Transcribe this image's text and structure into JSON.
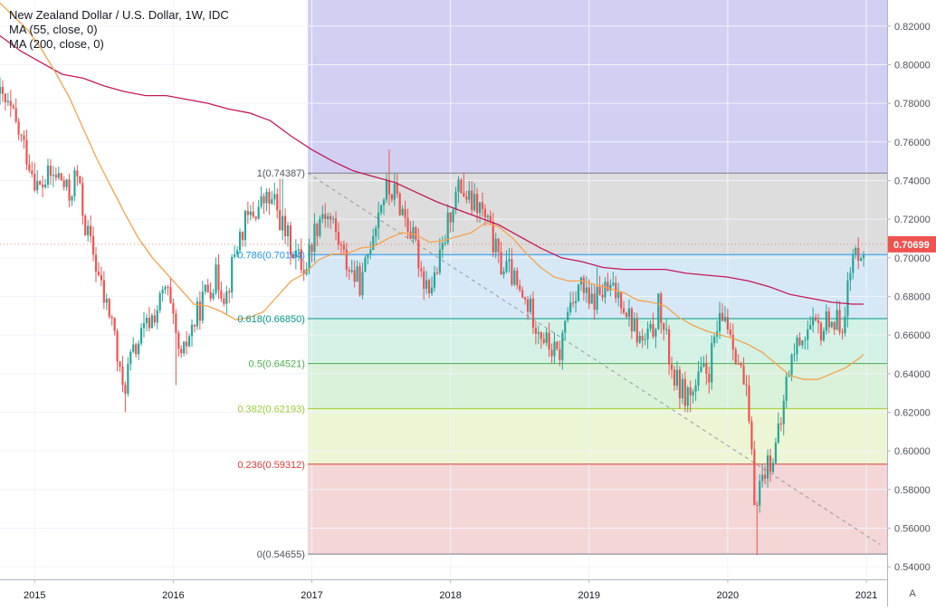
{
  "chart_data": {
    "type": "candlestick",
    "title": "New Zealand Dollar / U.S. Dollar, 1W, IDC",
    "indicators": [
      "MA (55, close, 0)",
      "MA (200, close, 0)"
    ],
    "x_tick_labels": [
      "2015",
      "2016",
      "2017",
      "2018",
      "2019",
      "2020",
      "2021"
    ],
    "y_tick_labels": [
      "0.82000",
      "0.80000",
      "0.78000",
      "0.76000",
      "0.74000",
      "0.72000",
      "0.70000",
      "0.68000",
      "0.66000",
      "0.64000",
      "0.62000",
      "0.60000",
      "0.58000",
      "0.56000",
      "0.54000"
    ],
    "ylim": [
      0.5335,
      0.8335
    ],
    "xlim": [
      2014.75,
      2021.15
    ],
    "last_price_label": "0.70699",
    "last_price": 0.70699,
    "colors": {
      "up": "#26a69a",
      "down": "#ef5350",
      "ma55": "#f7a24c",
      "ma200": "#c2185b",
      "trend": "#9598a1",
      "grid": "#f0f3fa"
    },
    "fibonacci": {
      "start_year": 2016.97,
      "levels": [
        {
          "label": "1(0.74387)",
          "value": 0.74387,
          "line": "#787b86",
          "fill": "#d7d7d7"
        },
        {
          "label": "0.786(0.70164)",
          "value": 0.70164,
          "line": "#2196f3",
          "fill": "#cfe4f3"
        },
        {
          "label": "0.618(0.66850)",
          "value": 0.6685,
          "line": "#009688",
          "fill": "#cdeee2"
        },
        {
          "label": "0.5(0.64521)",
          "value": 0.64521,
          "line": "#4caf50",
          "fill": "#d4efd4"
        },
        {
          "label": "0.382(0.62193)",
          "value": 0.62193,
          "line": "#9acd32",
          "fill": "#e9f4cd"
        },
        {
          "label": "0.236(0.59312)",
          "value": 0.59312,
          "line": "#e53935",
          "fill": "#f2cfcf"
        },
        {
          "label": "0(0.54655)",
          "value": 0.54655,
          "line": "#787b86",
          "fill": null
        }
      ],
      "extension_fill": "#d1d0f2"
    },
    "trendline": {
      "start": {
        "x": 2016.97,
        "y": 0.74387
      },
      "end": {
        "x": 2021.1,
        "y": 0.5515
      }
    },
    "price_path": [
      [
        2014.75,
        0.785
      ],
      [
        2014.85,
        0.775
      ],
      [
        2014.97,
        0.752
      ],
      [
        2015.05,
        0.735
      ],
      [
        2015.12,
        0.742
      ],
      [
        2015.2,
        0.742
      ],
      [
        2015.27,
        0.731
      ],
      [
        2015.32,
        0.745
      ],
      [
        2015.38,
        0.718
      ],
      [
        2015.45,
        0.7
      ],
      [
        2015.52,
        0.678
      ],
      [
        2015.58,
        0.668
      ],
      [
        2015.63,
        0.64
      ],
      [
        2015.66,
        0.63
      ],
      [
        2015.7,
        0.645
      ],
      [
        2015.76,
        0.655
      ],
      [
        2015.83,
        0.665
      ],
      [
        2015.9,
        0.673
      ],
      [
        2015.97,
        0.685
      ],
      [
        2016.03,
        0.66
      ],
      [
        2016.08,
        0.645
      ],
      [
        2016.12,
        0.658
      ],
      [
        2016.18,
        0.668
      ],
      [
        2016.25,
        0.682
      ],
      [
        2016.33,
        0.69
      ],
      [
        2016.4,
        0.68
      ],
      [
        2016.47,
        0.705
      ],
      [
        2016.53,
        0.717
      ],
      [
        2016.62,
        0.725
      ],
      [
        2016.68,
        0.73
      ],
      [
        2016.75,
        0.728
      ],
      [
        2016.82,
        0.714
      ],
      [
        2016.88,
        0.705
      ],
      [
        2016.97,
        0.694
      ],
      [
        2017.04,
        0.715
      ],
      [
        2017.1,
        0.725
      ],
      [
        2017.17,
        0.718
      ],
      [
        2017.25,
        0.7
      ],
      [
        2017.33,
        0.69
      ],
      [
        2017.38,
        0.686
      ],
      [
        2017.45,
        0.712
      ],
      [
        2017.52,
        0.73
      ],
      [
        2017.56,
        0.735
      ],
      [
        2017.62,
        0.733
      ],
      [
        2017.7,
        0.72
      ],
      [
        2017.77,
        0.705
      ],
      [
        2017.82,
        0.69
      ],
      [
        2017.88,
        0.685
      ],
      [
        2017.95,
        0.7
      ],
      [
        2018.03,
        0.728
      ],
      [
        2018.09,
        0.737
      ],
      [
        2018.16,
        0.728
      ],
      [
        2018.23,
        0.726
      ],
      [
        2018.3,
        0.715
      ],
      [
        2018.37,
        0.697
      ],
      [
        2018.45,
        0.693
      ],
      [
        2018.52,
        0.68
      ],
      [
        2018.58,
        0.675
      ],
      [
        2018.65,
        0.665
      ],
      [
        2018.72,
        0.655
      ],
      [
        2018.8,
        0.648
      ],
      [
        2018.87,
        0.675
      ],
      [
        2018.95,
        0.688
      ],
      [
        2019.02,
        0.675
      ],
      [
        2019.1,
        0.682
      ],
      [
        2019.17,
        0.683
      ],
      [
        2019.25,
        0.68
      ],
      [
        2019.32,
        0.668
      ],
      [
        2019.4,
        0.655
      ],
      [
        2019.47,
        0.66
      ],
      [
        2019.52,
        0.675
      ],
      [
        2019.58,
        0.655
      ],
      [
        2019.63,
        0.638
      ],
      [
        2019.7,
        0.63
      ],
      [
        2019.77,
        0.63
      ],
      [
        2019.83,
        0.64
      ],
      [
        2019.88,
        0.64
      ],
      [
        2019.93,
        0.66
      ],
      [
        2020.0,
        0.67
      ],
      [
        2020.05,
        0.66
      ],
      [
        2020.1,
        0.645
      ],
      [
        2020.15,
        0.63
      ],
      [
        2020.18,
        0.608
      ],
      [
        2020.21,
        0.575
      ],
      [
        2020.24,
        0.58
      ],
      [
        2020.28,
        0.59
      ],
      [
        2020.32,
        0.595
      ],
      [
        2020.36,
        0.6
      ],
      [
        2020.4,
        0.612
      ],
      [
        2020.45,
        0.64
      ],
      [
        2020.5,
        0.652
      ],
      [
        2020.55,
        0.66
      ],
      [
        2020.62,
        0.663
      ],
      [
        2020.7,
        0.662
      ],
      [
        2020.75,
        0.67
      ],
      [
        2020.8,
        0.666
      ],
      [
        2020.85,
        0.668
      ],
      [
        2020.88,
        0.682
      ],
      [
        2020.92,
        0.698
      ],
      [
        2020.97,
        0.706
      ]
    ],
    "extremes": [
      [
        2015.66,
        0.62
      ],
      [
        2016.02,
        0.634
      ],
      [
        2016.78,
        0.741
      ],
      [
        2017.56,
        0.756
      ],
      [
        2018.1,
        0.744
      ],
      [
        2018.8,
        0.642
      ],
      [
        2019.05,
        0.695
      ],
      [
        2019.72,
        0.62
      ],
      [
        2020.21,
        0.546
      ],
      [
        2021.0,
        0.711
      ]
    ],
    "ma55": [
      [
        2014.75,
        0.832
      ],
      [
        2014.95,
        0.818
      ],
      [
        2015.05,
        0.808
      ],
      [
        2015.15,
        0.796
      ],
      [
        2015.25,
        0.783
      ],
      [
        2015.35,
        0.767
      ],
      [
        2015.45,
        0.751
      ],
      [
        2015.55,
        0.737
      ],
      [
        2015.65,
        0.723
      ],
      [
        2015.75,
        0.71
      ],
      [
        2015.85,
        0.7
      ],
      [
        2015.95,
        0.692
      ],
      [
        2016.05,
        0.684
      ],
      [
        2016.15,
        0.676
      ],
      [
        2016.25,
        0.675
      ],
      [
        2016.35,
        0.672
      ],
      [
        2016.45,
        0.668
      ],
      [
        2016.55,
        0.669
      ],
      [
        2016.65,
        0.672
      ],
      [
        2016.75,
        0.68
      ],
      [
        2016.85,
        0.688
      ],
      [
        2016.95,
        0.692
      ],
      [
        2017.05,
        0.699
      ],
      [
        2017.15,
        0.702
      ],
      [
        2017.25,
        0.702
      ],
      [
        2017.35,
        0.705
      ],
      [
        2017.45,
        0.706
      ],
      [
        2017.55,
        0.71
      ],
      [
        2017.65,
        0.713
      ],
      [
        2017.75,
        0.712
      ],
      [
        2017.85,
        0.708
      ],
      [
        2017.95,
        0.709
      ],
      [
        2018.05,
        0.711
      ],
      [
        2018.15,
        0.713
      ],
      [
        2018.25,
        0.718
      ],
      [
        2018.35,
        0.716
      ],
      [
        2018.45,
        0.71
      ],
      [
        2018.55,
        0.702
      ],
      [
        2018.65,
        0.695
      ],
      [
        2018.75,
        0.69
      ],
      [
        2018.85,
        0.688
      ],
      [
        2018.95,
        0.688
      ],
      [
        2019.05,
        0.686
      ],
      [
        2019.15,
        0.684
      ],
      [
        2019.25,
        0.682
      ],
      [
        2019.35,
        0.678
      ],
      [
        2019.45,
        0.677
      ],
      [
        2019.55,
        0.675
      ],
      [
        2019.65,
        0.669
      ],
      [
        2019.75,
        0.665
      ],
      [
        2019.85,
        0.662
      ],
      [
        2019.95,
        0.66
      ],
      [
        2020.05,
        0.658
      ],
      [
        2020.15,
        0.655
      ],
      [
        2020.25,
        0.651
      ],
      [
        2020.35,
        0.645
      ],
      [
        2020.45,
        0.639
      ],
      [
        2020.55,
        0.637
      ],
      [
        2020.65,
        0.637
      ],
      [
        2020.75,
        0.64
      ],
      [
        2020.85,
        0.643
      ],
      [
        2020.95,
        0.648
      ],
      [
        2020.98,
        0.65
      ]
    ],
    "ma200": [
      [
        2014.75,
        0.815
      ],
      [
        2014.9,
        0.807
      ],
      [
        2015.05,
        0.801
      ],
      [
        2015.2,
        0.795
      ],
      [
        2015.35,
        0.793
      ],
      [
        2015.5,
        0.789
      ],
      [
        2015.65,
        0.786
      ],
      [
        2015.8,
        0.784
      ],
      [
        2015.95,
        0.784
      ],
      [
        2016.1,
        0.782
      ],
      [
        2016.25,
        0.78
      ],
      [
        2016.4,
        0.777
      ],
      [
        2016.55,
        0.775
      ],
      [
        2016.7,
        0.771
      ],
      [
        2016.85,
        0.763
      ],
      [
        2017.0,
        0.756
      ],
      [
        2017.15,
        0.75
      ],
      [
        2017.3,
        0.745
      ],
      [
        2017.45,
        0.742
      ],
      [
        2017.6,
        0.739
      ],
      [
        2017.75,
        0.734
      ],
      [
        2017.9,
        0.729
      ],
      [
        2018.05,
        0.725
      ],
      [
        2018.2,
        0.721
      ],
      [
        2018.35,
        0.717
      ],
      [
        2018.5,
        0.711
      ],
      [
        2018.65,
        0.705
      ],
      [
        2018.8,
        0.7
      ],
      [
        2018.95,
        0.698
      ],
      [
        2019.1,
        0.695
      ],
      [
        2019.25,
        0.694
      ],
      [
        2019.4,
        0.694
      ],
      [
        2019.55,
        0.694
      ],
      [
        2019.7,
        0.692
      ],
      [
        2019.85,
        0.691
      ],
      [
        2020.0,
        0.69
      ],
      [
        2020.15,
        0.688
      ],
      [
        2020.3,
        0.685
      ],
      [
        2020.45,
        0.681
      ],
      [
        2020.6,
        0.679
      ],
      [
        2020.75,
        0.677
      ],
      [
        2020.9,
        0.676
      ],
      [
        2020.98,
        0.676
      ]
    ]
  },
  "ui": {
    "auto_button_label": "A"
  }
}
